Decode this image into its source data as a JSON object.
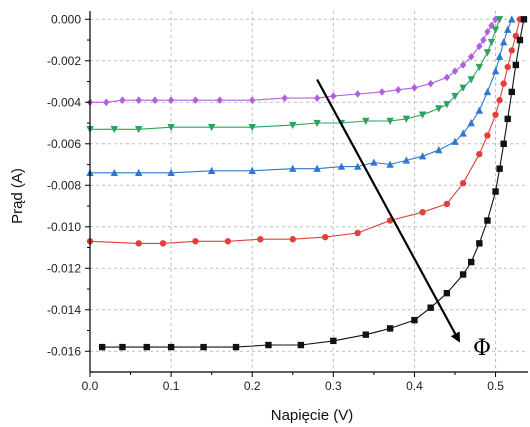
{
  "chart_data": {
    "type": "scatter",
    "title": "",
    "xlabel": "Napięcie (V)",
    "ylabel": "Prąd (A)",
    "xlim": [
      0.0,
      0.54
    ],
    "ylim": [
      -0.017,
      0.0004
    ],
    "x_ticks": [
      0.0,
      0.1,
      0.2,
      0.3,
      0.4,
      0.5
    ],
    "x_tick_labels": [
      "0.0",
      "0.1",
      "0.2",
      "0.3",
      "0.4",
      "0.5"
    ],
    "y_ticks": [
      0.0,
      -0.002,
      -0.004,
      -0.006,
      -0.008,
      -0.01,
      -0.012,
      -0.014,
      -0.016
    ],
    "y_tick_labels": [
      "0.000",
      "-0.002",
      "-0.004",
      "-0.006",
      "-0.008",
      "-0.010",
      "-0.012",
      "-0.014",
      "-0.016"
    ],
    "grid": true,
    "legend": "none",
    "annotation": {
      "text": "Φ",
      "arrow_from": [
        0.28,
        -0.0029
      ],
      "arrow_to": [
        0.455,
        -0.0155
      ]
    },
    "series": [
      {
        "marker": "diamond",
        "color": "#b05fe0",
        "x": [
          0.0,
          0.02,
          0.04,
          0.06,
          0.08,
          0.1,
          0.13,
          0.16,
          0.2,
          0.24,
          0.28,
          0.3,
          0.33,
          0.36,
          0.38,
          0.4,
          0.42,
          0.44,
          0.45,
          0.46,
          0.47,
          0.48,
          0.485,
          0.49,
          0.495,
          0.5
        ],
        "y": [
          -0.004,
          -0.004,
          -0.0039,
          -0.0039,
          -0.0039,
          -0.0039,
          -0.0039,
          -0.0039,
          -0.0039,
          -0.0038,
          -0.0038,
          -0.0037,
          -0.0036,
          -0.0035,
          -0.0034,
          -0.0033,
          -0.0031,
          -0.0028,
          -0.0025,
          -0.0022,
          -0.0018,
          -0.0013,
          -0.001,
          -0.0006,
          -0.0003,
          0.0
        ]
      },
      {
        "marker": "triangle-down",
        "color": "#2ca25f",
        "x": [
          0.0,
          0.03,
          0.06,
          0.1,
          0.15,
          0.2,
          0.25,
          0.28,
          0.31,
          0.34,
          0.37,
          0.39,
          0.41,
          0.43,
          0.44,
          0.45,
          0.46,
          0.47,
          0.48,
          0.49,
          0.495,
          0.5,
          0.505
        ],
        "y": [
          -0.0053,
          -0.0053,
          -0.0053,
          -0.0052,
          -0.0052,
          -0.0052,
          -0.0051,
          -0.005,
          -0.005,
          -0.0049,
          -0.0049,
          -0.0048,
          -0.0046,
          -0.0043,
          -0.0041,
          -0.0037,
          -0.0033,
          -0.0029,
          -0.0023,
          -0.0016,
          -0.0011,
          -0.0005,
          0.0
        ]
      },
      {
        "marker": "triangle-up",
        "color": "#2f77d0",
        "x": [
          0.0,
          0.03,
          0.06,
          0.1,
          0.15,
          0.2,
          0.25,
          0.28,
          0.31,
          0.33,
          0.35,
          0.37,
          0.39,
          0.41,
          0.43,
          0.45,
          0.46,
          0.47,
          0.48,
          0.49,
          0.5,
          0.505,
          0.51,
          0.515,
          0.52
        ],
        "y": [
          -0.0074,
          -0.0074,
          -0.0074,
          -0.0074,
          -0.0073,
          -0.0073,
          -0.0072,
          -0.0072,
          -0.0071,
          -0.0071,
          -0.0069,
          -0.007,
          -0.0068,
          -0.0066,
          -0.0063,
          -0.0059,
          -0.0055,
          -0.005,
          -0.0044,
          -0.0035,
          -0.0025,
          -0.0018,
          -0.0011,
          -0.0005,
          0.0
        ]
      },
      {
        "marker": "circle",
        "color": "#e0403a",
        "x": [
          0.0,
          0.06,
          0.09,
          0.13,
          0.17,
          0.21,
          0.25,
          0.29,
          0.33,
          0.37,
          0.41,
          0.44,
          0.46,
          0.48,
          0.49,
          0.5,
          0.505,
          0.51,
          0.515,
          0.52,
          0.525,
          0.53
        ],
        "y": [
          -0.0107,
          -0.0108,
          -0.0108,
          -0.0107,
          -0.0107,
          -0.0106,
          -0.0106,
          -0.0105,
          -0.0103,
          -0.0097,
          -0.0093,
          -0.0089,
          -0.0079,
          -0.0065,
          -0.0056,
          -0.0046,
          -0.0039,
          -0.0031,
          -0.0023,
          -0.0015,
          -0.0008,
          0.0
        ]
      },
      {
        "marker": "square",
        "color": "#111111",
        "x": [
          0.015,
          0.04,
          0.07,
          0.1,
          0.14,
          0.18,
          0.22,
          0.26,
          0.3,
          0.34,
          0.37,
          0.4,
          0.42,
          0.44,
          0.46,
          0.47,
          0.48,
          0.49,
          0.5,
          0.505,
          0.51,
          0.515,
          0.52,
          0.525,
          0.53,
          0.535
        ],
        "y": [
          -0.0158,
          -0.0158,
          -0.0158,
          -0.0158,
          -0.0158,
          -0.0158,
          -0.0157,
          -0.0157,
          -0.0155,
          -0.0152,
          -0.0149,
          -0.0145,
          -0.0139,
          -0.0132,
          -0.0123,
          -0.0117,
          -0.0108,
          -0.0097,
          -0.0083,
          -0.0072,
          -0.006,
          -0.0048,
          -0.0035,
          -0.0022,
          -0.001,
          0.0
        ]
      }
    ]
  }
}
